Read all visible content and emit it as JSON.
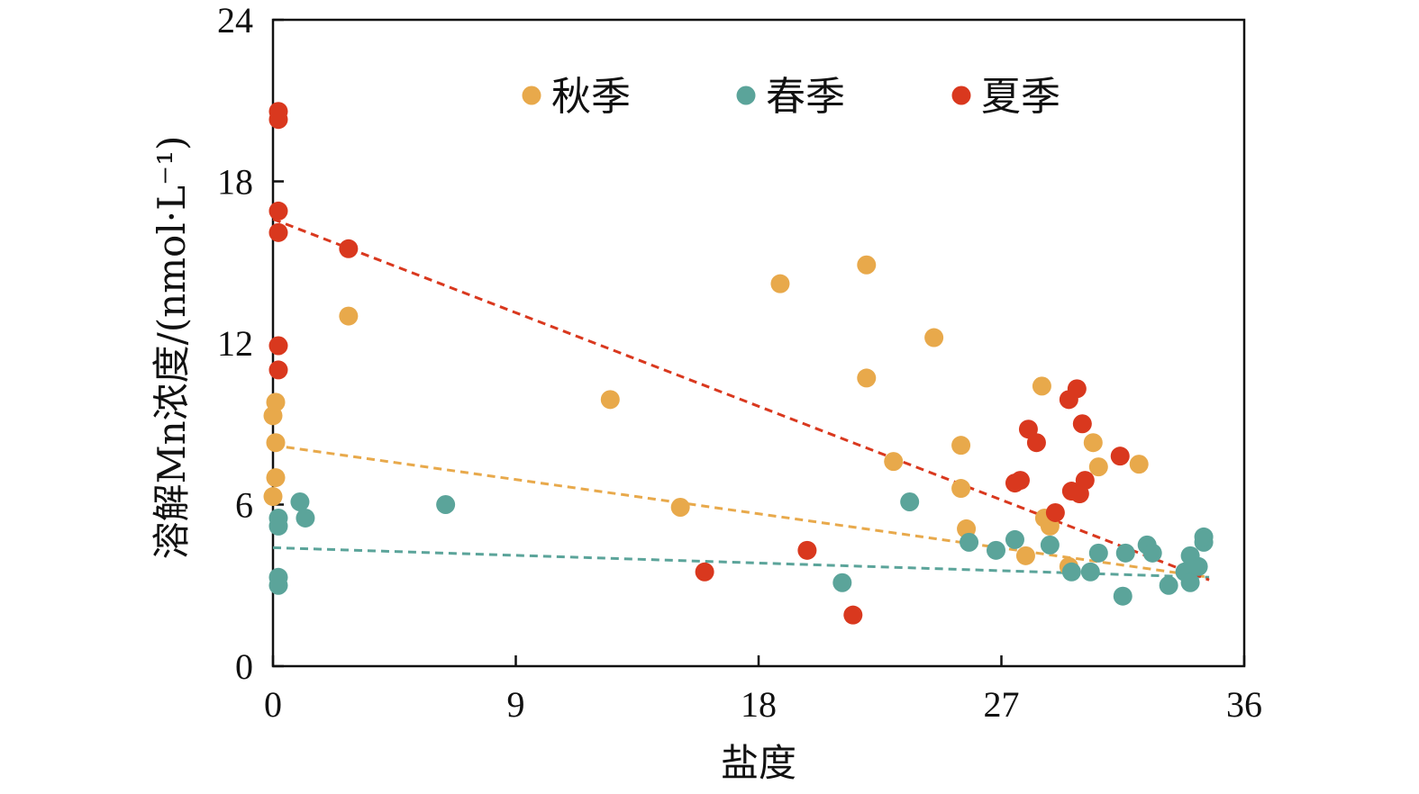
{
  "chart_data": {
    "type": "scatter",
    "xlabel": "盐度",
    "ylabel": "溶解Mn浓度/(nmol·L⁻¹)",
    "xlim": [
      0,
      36
    ],
    "ylim": [
      0,
      24
    ],
    "xticks": [
      0,
      9,
      18,
      27,
      36
    ],
    "yticks": [
      0,
      6,
      12,
      18,
      24
    ],
    "grid": false,
    "legend_position": "top",
    "series": [
      {
        "name": "秋季",
        "color": "#E8A94B",
        "points": [
          [
            0.0,
            9.3
          ],
          [
            0.1,
            9.8
          ],
          [
            0.1,
            8.3
          ],
          [
            0.1,
            7.0
          ],
          [
            0.0,
            6.3
          ],
          [
            2.8,
            13.0
          ],
          [
            12.5,
            9.9
          ],
          [
            15.1,
            5.9
          ],
          [
            18.8,
            14.2
          ],
          [
            22.0,
            14.9
          ],
          [
            22.0,
            10.7
          ],
          [
            23.0,
            7.6
          ],
          [
            24.5,
            12.2
          ],
          [
            25.5,
            8.2
          ],
          [
            25.5,
            6.6
          ],
          [
            25.7,
            5.1
          ],
          [
            27.9,
            4.1
          ],
          [
            28.5,
            10.4
          ],
          [
            28.6,
            5.5
          ],
          [
            28.8,
            5.2
          ],
          [
            29.5,
            3.7
          ],
          [
            30.4,
            8.3
          ],
          [
            30.6,
            7.4
          ],
          [
            32.1,
            7.5
          ]
        ]
      },
      {
        "name": "春季",
        "color": "#5BA49A",
        "points": [
          [
            0.2,
            5.5
          ],
          [
            0.2,
            5.2
          ],
          [
            0.2,
            3.3
          ],
          [
            0.2,
            3.0
          ],
          [
            1.0,
            6.1
          ],
          [
            1.2,
            5.5
          ],
          [
            6.4,
            6.0
          ],
          [
            21.1,
            3.1
          ],
          [
            23.6,
            6.1
          ],
          [
            25.8,
            4.6
          ],
          [
            26.8,
            4.3
          ],
          [
            27.5,
            4.7
          ],
          [
            28.8,
            4.5
          ],
          [
            29.6,
            3.5
          ],
          [
            30.3,
            3.5
          ],
          [
            30.6,
            4.2
          ],
          [
            31.5,
            2.6
          ],
          [
            31.6,
            4.2
          ],
          [
            32.4,
            4.5
          ],
          [
            32.6,
            4.2
          ],
          [
            33.2,
            3.0
          ],
          [
            33.8,
            3.5
          ],
          [
            34.0,
            3.1
          ],
          [
            34.0,
            4.1
          ],
          [
            34.3,
            3.7
          ],
          [
            34.5,
            4.6
          ],
          [
            34.5,
            4.8
          ]
        ]
      },
      {
        "name": "夏季",
        "color": "#D9381E",
        "points": [
          [
            0.2,
            20.6
          ],
          [
            0.2,
            20.3
          ],
          [
            0.2,
            16.9
          ],
          [
            0.2,
            16.1
          ],
          [
            0.2,
            11.9
          ],
          [
            0.2,
            11.0
          ],
          [
            2.8,
            15.5
          ],
          [
            16.0,
            3.5
          ],
          [
            19.8,
            4.3
          ],
          [
            21.5,
            1.9
          ],
          [
            27.5,
            6.8
          ],
          [
            27.7,
            6.9
          ],
          [
            28.0,
            8.8
          ],
          [
            28.3,
            8.3
          ],
          [
            29.0,
            5.7
          ],
          [
            29.5,
            9.9
          ],
          [
            29.6,
            6.5
          ],
          [
            29.8,
            10.3
          ],
          [
            29.9,
            6.4
          ],
          [
            30.0,
            9.0
          ],
          [
            30.1,
            6.9
          ],
          [
            31.4,
            7.8
          ]
        ]
      }
    ],
    "trendlines": [
      {
        "series": "秋季",
        "color": "#E8A94B",
        "x": [
          0,
          34.7
        ],
        "y": [
          8.2,
          3.3
        ]
      },
      {
        "series": "春季",
        "color": "#5BA49A",
        "x": [
          0,
          34.7
        ],
        "y": [
          4.4,
          3.3
        ]
      },
      {
        "series": "夏季",
        "color": "#D9381E",
        "x": [
          0,
          34.7
        ],
        "y": [
          16.6,
          3.2
        ]
      }
    ]
  }
}
